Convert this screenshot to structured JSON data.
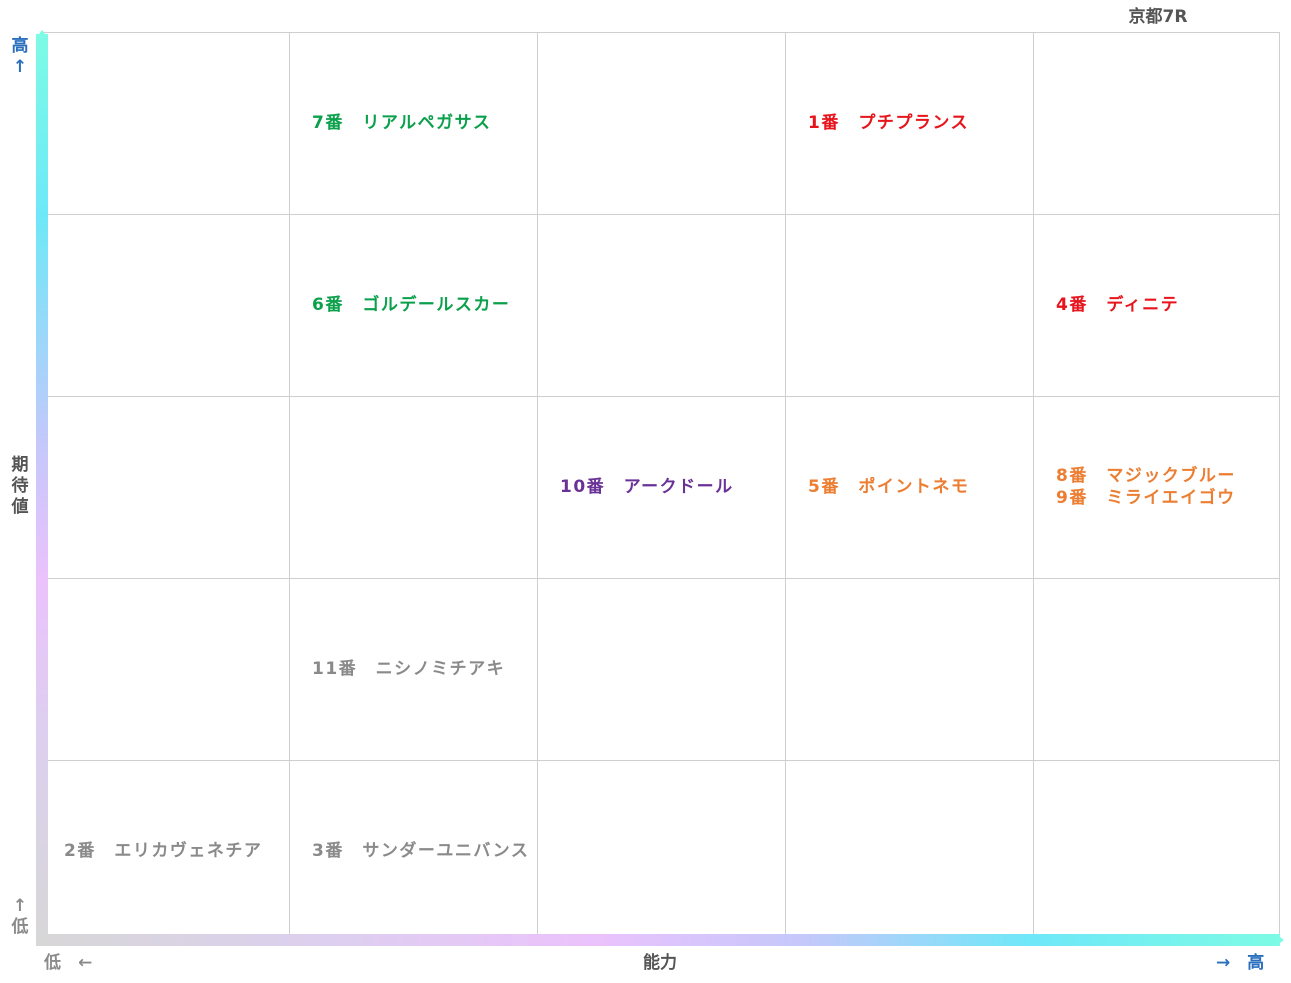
{
  "race": "京都7R",
  "y_axis": {
    "high": "高",
    "high_arrow": "↑",
    "label": "期待値",
    "low_arrow": "↑",
    "low": "低"
  },
  "x_axis": {
    "low": "低　←",
    "label": "能力",
    "high": "→　高"
  },
  "colors": {
    "green": "#0ba04b",
    "red": "#e8141c",
    "purple": "#6a3297",
    "orange": "#ec7d31",
    "gray": "#8a8a8a"
  },
  "chart_data": {
    "type": "table",
    "columns": 5,
    "rows": 5,
    "entries": [
      {
        "text": "7番　リアルペガサス",
        "ability": 2,
        "expectation": 5,
        "color": "#0ba04b"
      },
      {
        "text": "1番　プチプランス",
        "ability": 4,
        "expectation": 5,
        "color": "#e8141c"
      },
      {
        "text": "6番　ゴルデールスカー",
        "ability": 2,
        "expectation": 4,
        "color": "#0ba04b"
      },
      {
        "text": "4番　ディニテ",
        "ability": 5,
        "expectation": 4,
        "color": "#e8141c"
      },
      {
        "text": "10番　アークドール",
        "ability": 3,
        "expectation": 3,
        "color": "#6a3297"
      },
      {
        "text": "5番　ポイントネモ",
        "ability": 4,
        "expectation": 3,
        "color": "#ec7d31"
      },
      {
        "text": "8番　マジックブルー\n9番　ミライエイゴウ",
        "ability": 5,
        "expectation": 3,
        "color": "#ec7d31"
      },
      {
        "text": "11番　ニシノミチアキ",
        "ability": 2,
        "expectation": 2,
        "color": "#8a8a8a"
      },
      {
        "text": "2番　エリカヴェネチア",
        "ability": 1,
        "expectation": 1,
        "color": "#8a8a8a"
      },
      {
        "text": "3番　サンダーユニバンス",
        "ability": 2,
        "expectation": 1,
        "color": "#8a8a8a"
      }
    ]
  }
}
